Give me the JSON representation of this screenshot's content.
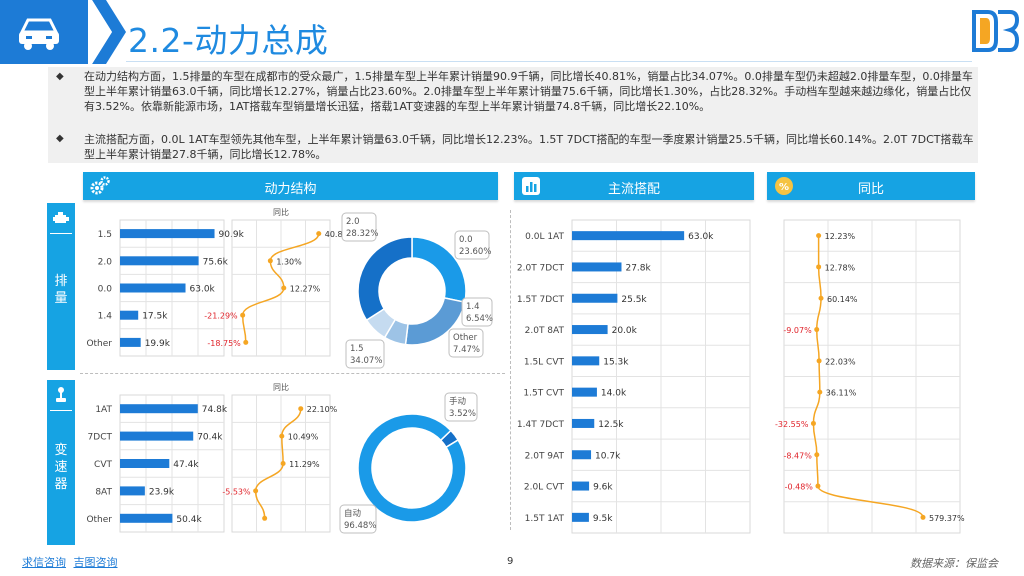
{
  "header": {
    "title": "2.2-动力总成",
    "logo": "db-logo",
    "icon": "car-icon"
  },
  "summary": {
    "paragraphs": [
      "在动力结构方面，1.5排量的车型在成都市的受众最广，1.5排量车型上半年累计销量90.9千辆，同比增长40.81%，销量占比34.07%。0.0排量车型仍未超越2.0排量车型，0.0排量车型上半年累计销量63.0千辆，同比增长12.27%，销量占比23.60%。2.0排量车型上半年累计销量75.6千辆，同比增长1.30%，占比28.32%。手动档车型越来越边缘化，销量占比仅有3.52%。依靠新能源市场，1AT搭载车型销量增长迅猛，搭载1AT变速器的车型上半年累计销量74.8千辆，同比增长22.10%。",
      "主流搭配方面，0.0L 1AT车型领先其他车型，上半年累计销量63.0千辆，同比增长12.23%。1.5T 7DCT搭配的车型一季度累计销量25.5千辆，同比增长60.14%。2.0T 7DCT搭载车型上半年累计销量27.8千辆，同比增长12.78%。"
    ]
  },
  "panels": {
    "power": {
      "title": "动力结构",
      "icon": "gears-icon"
    },
    "combo": {
      "title": "主流搭配",
      "icon": "bar-chart-icon"
    },
    "yoy": {
      "title": "同比",
      "icon": "percent-icon"
    }
  },
  "side": {
    "displacement": {
      "label": "排量",
      "icon": "engine-icon"
    },
    "transmission": {
      "label": "变速器",
      "icon": "gear-shift-icon"
    }
  },
  "chart_data": [
    {
      "id": "displacement-sales",
      "type": "bar",
      "categories": [
        "1.5",
        "2.0",
        "0.0",
        "1.4",
        "Other"
      ],
      "values": [
        90.9,
        75.6,
        63.0,
        17.5,
        19.9
      ],
      "labels": [
        "90.9k",
        "75.6k",
        "63.0k",
        "17.5k",
        "19.9k"
      ],
      "xlim": [
        0,
        100
      ],
      "color": "#1d7bd6"
    },
    {
      "id": "displacement-yoy",
      "type": "line",
      "title": "同比",
      "categories": [
        "1.5",
        "2.0",
        "0.0",
        "1.4",
        "Other"
      ],
      "values": [
        40.81,
        1.3,
        12.27,
        -21.29,
        -18.75
      ],
      "labels": [
        "40.81%",
        "1.30%",
        "12.27%",
        "-21.29%",
        "-18.75%"
      ],
      "xlim": [
        -30,
        50
      ],
      "color": "#f5a623"
    },
    {
      "id": "displacement-share",
      "type": "pie",
      "categories": [
        "2.0",
        "0.0",
        "1.4",
        "Other",
        "1.5"
      ],
      "values": [
        28.32,
        23.6,
        6.54,
        7.47,
        34.07
      ],
      "labels": [
        "28.32%",
        "23.60%",
        "6.54%",
        "7.47%",
        "34.07%"
      ],
      "colors": [
        "#1a9ae8",
        "#5b9bd5",
        "#9dc3e6",
        "#c5dbf0",
        "#1570c8"
      ]
    },
    {
      "id": "transmission-sales",
      "type": "bar",
      "categories": [
        "1AT",
        "7DCT",
        "CVT",
        "8AT",
        "Other"
      ],
      "values": [
        74.8,
        70.4,
        47.4,
        23.9,
        50.4
      ],
      "labels": [
        "74.8k",
        "70.4k",
        "47.4k",
        "23.9k",
        "50.4k"
      ],
      "xlim": [
        0,
        100
      ],
      "color": "#1d7bd6"
    },
    {
      "id": "transmission-yoy",
      "type": "line",
      "title": "同比",
      "categories": [
        "1AT",
        "7DCT",
        "CVT",
        "8AT",
        "Other"
      ],
      "values": [
        22.1,
        10.49,
        11.29,
        -5.53,
        0
      ],
      "labels": [
        "22.10%",
        "10.49%",
        "11.29%",
        "-5.53%",
        ""
      ],
      "xlim": [
        -20,
        40
      ],
      "color": "#f5a623"
    },
    {
      "id": "transmission-share",
      "type": "pie",
      "categories": [
        "手动",
        "自动"
      ],
      "values": [
        3.52,
        96.48
      ],
      "labels": [
        "3.52%",
        "96.48%"
      ],
      "colors": [
        "#1570c8",
        "#1a9ae8"
      ]
    },
    {
      "id": "combo-sales",
      "type": "bar",
      "categories": [
        "0.0L 1AT",
        "2.0T 7DCT",
        "1.5T 7DCT",
        "2.0T 8AT",
        "1.5L CVT",
        "1.5T CVT",
        "1.4T 7DCT",
        "2.0T 9AT",
        "2.0L CVT",
        "1.5T 1AT"
      ],
      "values": [
        63.0,
        27.8,
        25.5,
        20.0,
        15.3,
        14.0,
        12.5,
        10.7,
        9.6,
        9.5
      ],
      "labels": [
        "63.0k",
        "27.8k",
        "25.5k",
        "20.0k",
        "15.3k",
        "14.0k",
        "12.5k",
        "10.7k",
        "9.6k",
        "9.5k"
      ],
      "xlim": [
        0,
        100
      ],
      "color": "#1d7bd6"
    },
    {
      "id": "combo-yoy",
      "type": "line",
      "categories": [
        "0.0L 1AT",
        "2.0T 7DCT",
        "1.5T 7DCT",
        "2.0T 8AT",
        "1.5L CVT",
        "1.5T CVT",
        "1.4T 7DCT",
        "2.0T 9AT",
        "2.0L CVT",
        "1.5T 1AT"
      ],
      "values": [
        12.23,
        12.78,
        60.14,
        -9.07,
        22.03,
        36.11,
        -32.55,
        -8.47,
        -0.48,
        579.37
      ],
      "labels": [
        "12.23%",
        "12.78%",
        "60.14%",
        "-9.07%",
        "22.03%",
        "36.11%",
        "-32.55%",
        "-8.47%",
        "-0.48%",
        "579.37%"
      ],
      "color": "#f5a623"
    }
  ],
  "footer": {
    "links": [
      "求信咨询",
      "吉图咨询"
    ],
    "page": "9",
    "source": "数据来源：保监会"
  }
}
